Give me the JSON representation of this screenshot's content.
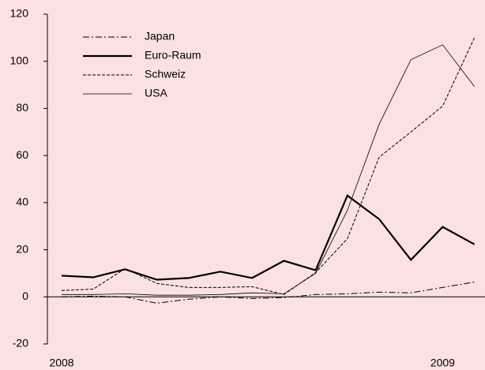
{
  "chart_data": {
    "type": "line",
    "categories": [
      "2008",
      null,
      null,
      null,
      null,
      null,
      null,
      null,
      null,
      null,
      null,
      null,
      "2009",
      null
    ],
    "series": [
      {
        "name": "Japan",
        "color": "#000000",
        "style": "dashdot",
        "width": 1,
        "values": [
          0,
          0.3,
          0,
          -2.7,
          -1,
          0,
          -0.7,
          -0.3,
          1,
          1.3,
          2,
          1.7,
          4,
          6.3
        ]
      },
      {
        "name": "Euro-Raum",
        "color": "#000000",
        "style": "solid",
        "width": 2.2,
        "values": [
          9,
          8.3,
          11.7,
          7.3,
          8,
          10.7,
          8,
          15.3,
          11.3,
          43,
          33,
          15.7,
          29.7,
          22.3
        ]
      },
      {
        "name": "Schweiz",
        "color": "#000000",
        "style": "dashed",
        "width": 1,
        "values": [
          2.7,
          3.3,
          12,
          5.7,
          4,
          4,
          4.3,
          1,
          10.3,
          24.7,
          59.3,
          70,
          81,
          110
        ]
      },
      {
        "name": "USA",
        "color": "#000000",
        "style": "solid",
        "width": 0.8,
        "values": [
          1,
          1,
          1.3,
          0.7,
          0.7,
          1,
          1.7,
          1.3,
          10,
          36.7,
          73.3,
          100.7,
          107,
          89.3
        ]
      }
    ],
    "ylim": [
      -20,
      120
    ],
    "yticks": [
      -20,
      0,
      20,
      40,
      60,
      80,
      100,
      120
    ]
  }
}
